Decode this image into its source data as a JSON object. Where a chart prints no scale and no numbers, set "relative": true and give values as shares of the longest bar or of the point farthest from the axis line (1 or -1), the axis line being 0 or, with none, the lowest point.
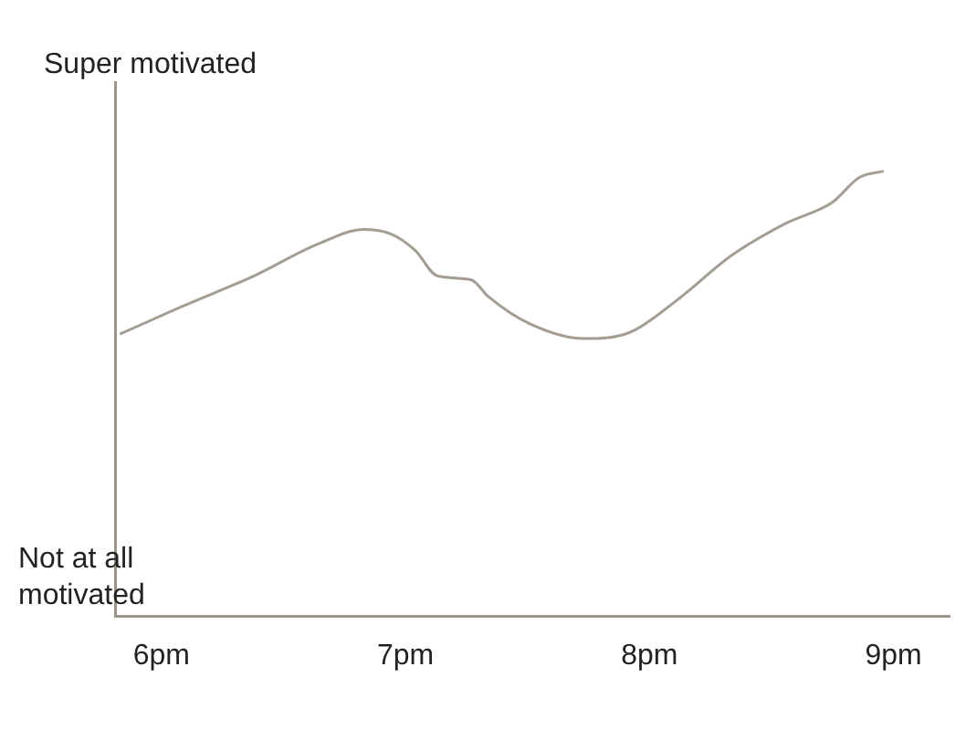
{
  "chart_data": {
    "type": "line",
    "relative": true,
    "tick_labels": "x",
    "x": [
      5.83,
      6.08,
      6.38,
      6.64,
      6.83,
      6.94,
      7.04,
      7.13,
      7.27,
      7.34,
      7.51,
      7.73,
      7.92,
      8.11,
      8.34,
      8.56,
      8.75,
      8.86,
      8.96
    ],
    "series": [
      {
        "color": "#a39d93",
        "values": [
          0.634,
          0.695,
          0.765,
          0.836,
          0.869,
          0.859,
          0.822,
          0.765,
          0.756,
          0.718,
          0.657,
          0.624,
          0.638,
          0.709,
          0.812,
          0.883,
          0.93,
          0.986,
          1
        ]
      }
    ],
    "xlim": [
      5.81,
      9.23
    ],
    "xticks": [
      {
        "value": 6,
        "label": "6pm"
      },
      {
        "value": 7,
        "label": "7pm"
      },
      {
        "value": 8,
        "label": "8pm"
      },
      {
        "value": 9,
        "label": "9pm"
      }
    ],
    "annotations": [
      "Super motivated",
      "Not at all motivated"
    ]
  }
}
